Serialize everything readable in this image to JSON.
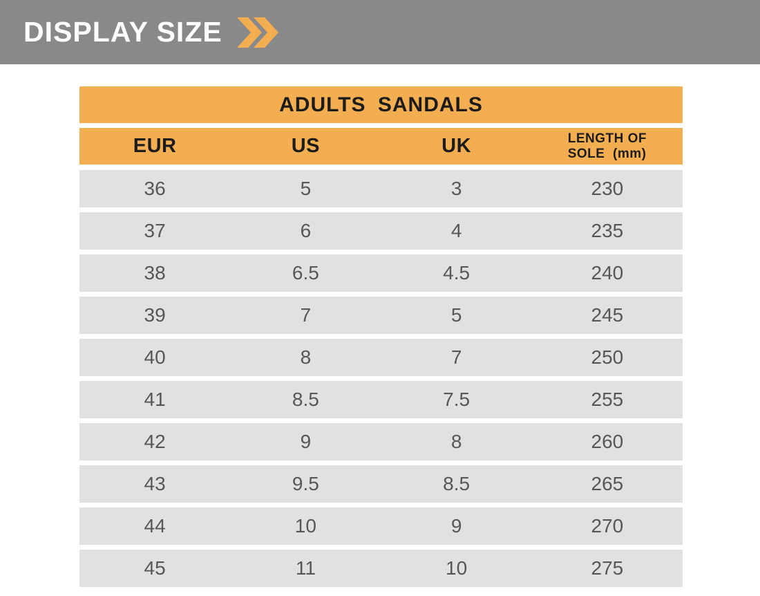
{
  "banner": {
    "title": "DISPLAY SIZE",
    "icon": "double-chevron-right-icon",
    "bg_color": "#898989",
    "accent_color": "#F4AE52",
    "title_color": "#FFFFFF"
  },
  "table": {
    "title": "ADULTS SANDALS",
    "columns": [
      "EUR",
      "US",
      "UK",
      "LENGTH OF\nSOLE  (mm)"
    ],
    "column_keys": [
      "eur",
      "us",
      "uk",
      "length-of-sole-mm"
    ],
    "rows": [
      [
        "36",
        "5",
        "3",
        "230"
      ],
      [
        "37",
        "6",
        "4",
        "235"
      ],
      [
        "38",
        "6.5",
        "4.5",
        "240"
      ],
      [
        "39",
        "7",
        "5",
        "245"
      ],
      [
        "40",
        "8",
        "7",
        "250"
      ],
      [
        "41",
        "8.5",
        "7.5",
        "255"
      ],
      [
        "42",
        "9",
        "8",
        "260"
      ],
      [
        "43",
        "9.5",
        "8.5",
        "265"
      ],
      [
        "44",
        "10",
        "9",
        "270"
      ],
      [
        "45",
        "11",
        "10",
        "275"
      ]
    ],
    "colors": {
      "header_bg": "#F4AE52",
      "row_bg": "#E1E1E1",
      "header_text": "#1C1C1C",
      "row_text": "#57575A"
    }
  }
}
